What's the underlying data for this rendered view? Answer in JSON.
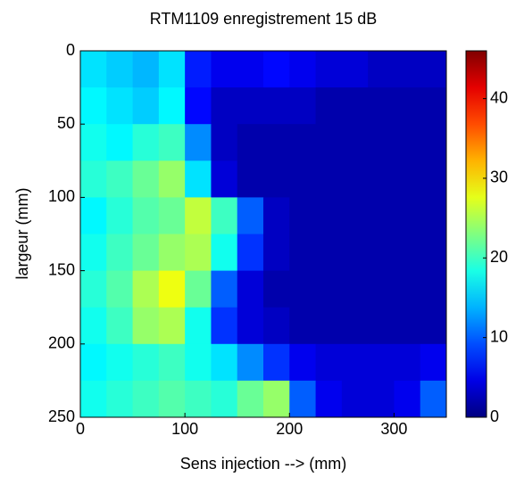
{
  "chart_data": {
    "type": "heatmap",
    "title": "RTM1109 enregistrement 15 dB",
    "xlabel": "Sens injection --> (mm)",
    "ylabel": "largeur (mm)",
    "xlim": [
      0,
      350
    ],
    "ylim": [
      0,
      250
    ],
    "y_reversed": true,
    "xticks": [
      0,
      100,
      200,
      300
    ],
    "yticks": [
      0,
      50,
      100,
      150,
      200,
      250
    ],
    "colormap": "jet",
    "clim": [
      0,
      46
    ],
    "colorbar_ticks": [
      0,
      10,
      20,
      30,
      40
    ],
    "values": [
      [
        16,
        15,
        14,
        16,
        7,
        5,
        5,
        6,
        5,
        4,
        4,
        3,
        3,
        3
      ],
      [
        17,
        16,
        15,
        17,
        6,
        3,
        3,
        3,
        3,
        2,
        2,
        2,
        2,
        2
      ],
      [
        18,
        17,
        19,
        20,
        12,
        3,
        2,
        2,
        2,
        2,
        2,
        2,
        2,
        2
      ],
      [
        19,
        20,
        22,
        24,
        16,
        4,
        2,
        2,
        2,
        2,
        2,
        2,
        2,
        2
      ],
      [
        17,
        19,
        21,
        22,
        26,
        20,
        10,
        3,
        2,
        2,
        2,
        2,
        2,
        2
      ],
      [
        18,
        20,
        22,
        24,
        25,
        18,
        8,
        3,
        2,
        2,
        2,
        2,
        2,
        2
      ],
      [
        19,
        21,
        25,
        28,
        22,
        10,
        4,
        2,
        2,
        2,
        2,
        2,
        2,
        2
      ],
      [
        18,
        20,
        24,
        25,
        18,
        8,
        4,
        3,
        2,
        2,
        2,
        2,
        2,
        2
      ],
      [
        17,
        18,
        19,
        20,
        18,
        16,
        12,
        8,
        5,
        4,
        4,
        4,
        4,
        5
      ],
      [
        18,
        19,
        20,
        21,
        20,
        19,
        22,
        24,
        10,
        5,
        4,
        4,
        5,
        10
      ]
    ]
  }
}
